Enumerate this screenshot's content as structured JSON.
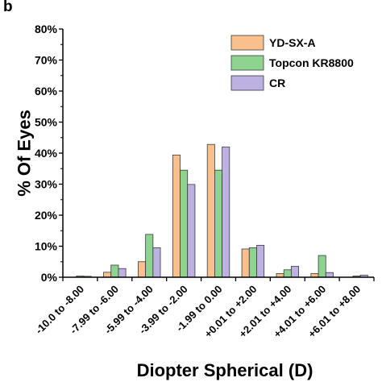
{
  "panel_label": "b",
  "chart_data": {
    "type": "bar",
    "title": "",
    "xlabel": "Diopter Spherical (D)",
    "ylabel": "% Of Eyes",
    "ylim": [
      0,
      80
    ],
    "yticks": [
      "0%",
      "10%",
      "20%",
      "30%",
      "40%",
      "50%",
      "60%",
      "70%",
      "80%"
    ],
    "ytick_values": [
      0,
      10,
      20,
      30,
      40,
      50,
      60,
      70,
      80
    ],
    "grid": false,
    "legend_position": "top-right",
    "categories": [
      "-10.0 to -8.00",
      "-7.99 to -6.00",
      "-5.99 to -4.00",
      "-3.99 to -2.00",
      "-1.99 to 0.00",
      "+0.01 to +2.00",
      "+2.01 to +4.00",
      "+4.01 to +6.00",
      "+6.01 to +8.00"
    ],
    "series": [
      {
        "name": "YD-SX-A",
        "color": "#F9C08E",
        "values": [
          0,
          1.6,
          5.0,
          39.4,
          42.8,
          9.1,
          1.2,
          1.2,
          0
        ]
      },
      {
        "name": "Topcon KR8800",
        "color": "#8ED38F",
        "values": [
          0.4,
          3.9,
          13.8,
          34.5,
          34.5,
          9.5,
          2.4,
          7.0,
          0.4
        ]
      },
      {
        "name": "CR",
        "color": "#BDB1E2",
        "values": [
          0.3,
          2.8,
          9.5,
          29.9,
          42.0,
          10.3,
          3.5,
          1.5,
          0.7
        ]
      }
    ]
  }
}
